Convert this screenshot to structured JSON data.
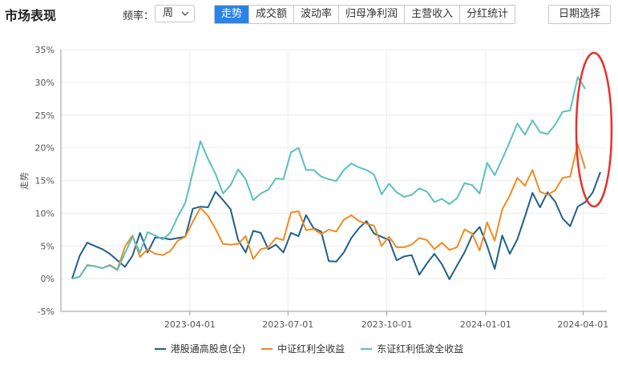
{
  "header": {
    "title": "市场表现",
    "freq_label": "频率：",
    "freq_value": "周",
    "tabs": [
      {
        "label": "走势",
        "active": true
      },
      {
        "label": "成交额",
        "active": false
      },
      {
        "label": "波动率",
        "active": false
      },
      {
        "label": "归母净利润",
        "active": false
      },
      {
        "label": "主营收入",
        "active": false
      },
      {
        "label": "分红统计",
        "active": false
      }
    ],
    "date_button": "日期选择"
  },
  "colors": {
    "accent": "#2b84e8",
    "annotation": "#e8302a"
  },
  "chart_data": {
    "type": "line",
    "ylabel": "走势",
    "xlabel": "",
    "ylim": [
      -5,
      35
    ],
    "yticks": [
      "-5%",
      "0%",
      "5%",
      "10%",
      "15%",
      "20%",
      "25%",
      "30%",
      "35%"
    ],
    "ytick_values": [
      -5,
      0,
      5,
      10,
      15,
      20,
      25,
      30,
      35
    ],
    "xticks": [
      "2023-04-01",
      "2023-07-01",
      "2023-10-01",
      "2024-01-01",
      "2024-04-01"
    ],
    "xtick_index": [
      15.6,
      28.6,
      41.7,
      54.8,
      67.7
    ],
    "grid": true,
    "legend_position": "bottom",
    "series": [
      {
        "name": "港股通高股息(全)",
        "color": "#1f5f8f",
        "values": [
          0,
          3.5,
          5.5,
          5.0,
          4.5,
          3.8,
          2.8,
          1.8,
          3.5,
          7.0,
          4.0,
          6.3,
          6.2,
          6.0,
          6.2,
          6.4,
          10.7,
          11.0,
          10.9,
          13.3,
          12.0,
          10.6,
          5.9,
          4.0,
          7.3,
          7.0,
          4.5,
          5.2,
          4.0,
          7.0,
          6.5,
          9.7,
          7.7,
          7.2,
          2.7,
          2.6,
          4.0,
          6.2,
          7.7,
          8.8,
          6.9,
          6.4,
          5.9,
          2.8,
          3.4,
          3.6,
          0.6,
          2.3,
          3.8,
          2.2,
          -0.1,
          2.0,
          4.0,
          6.6,
          7.9,
          5.0,
          1.5,
          6.6,
          3.8,
          6.0,
          9.5,
          13.1,
          10.9,
          13.2,
          11.8,
          9.2,
          8.0,
          11.0,
          11.7,
          13.2,
          16.3
        ]
      },
      {
        "name": "中证红利全收益",
        "color": "#f08b21",
        "values": [
          0,
          0.3,
          2.1,
          1.9,
          1.6,
          2.1,
          1.4,
          4.9,
          6.6,
          3.3,
          4.5,
          3.8,
          3.6,
          4.2,
          5.8,
          6.4,
          8.7,
          10.8,
          9.6,
          7.6,
          5.3,
          5.2,
          5.3,
          6.5,
          3.0,
          4.5,
          4.8,
          6.2,
          5.9,
          10.1,
          10.3,
          7.4,
          7.6,
          6.8,
          7.5,
          7.2,
          9.0,
          9.7,
          8.8,
          8.4,
          8.1,
          5.0,
          6.4,
          4.8,
          4.8,
          5.2,
          6.2,
          5.9,
          4.5,
          5.5,
          4.4,
          4.8,
          7.5,
          6.9,
          4.3,
          8.6,
          5.8,
          10.6,
          12.7,
          15.4,
          14.2,
          16.6,
          13.3,
          12.8,
          13.5,
          15.4,
          15.6,
          20.5,
          16.8
        ]
      },
      {
        "name": "东证红利低波全收益",
        "color": "#5bbfbf",
        "values": [
          0,
          0.3,
          2.0,
          1.9,
          1.6,
          2.0,
          1.3,
          3.9,
          6.4,
          4.0,
          7.1,
          6.6,
          6.0,
          7.0,
          9.5,
          11.6,
          16.3,
          21.0,
          18.3,
          16.0,
          13.0,
          14.3,
          16.7,
          15.2,
          12.0,
          13.0,
          13.6,
          15.3,
          15.2,
          19.3,
          20.0,
          16.6,
          16.6,
          15.6,
          15.2,
          14.9,
          16.6,
          17.6,
          17.0,
          16.6,
          15.9,
          12.9,
          14.5,
          13.2,
          12.5,
          12.8,
          13.8,
          13.3,
          11.7,
          12.2,
          11.4,
          12.3,
          14.6,
          14.3,
          13.0,
          17.7,
          15.8,
          18.3,
          20.9,
          23.7,
          22.0,
          24.2,
          22.4,
          22.1,
          23.5,
          25.5,
          25.7,
          30.8,
          29.0
        ]
      }
    ]
  }
}
